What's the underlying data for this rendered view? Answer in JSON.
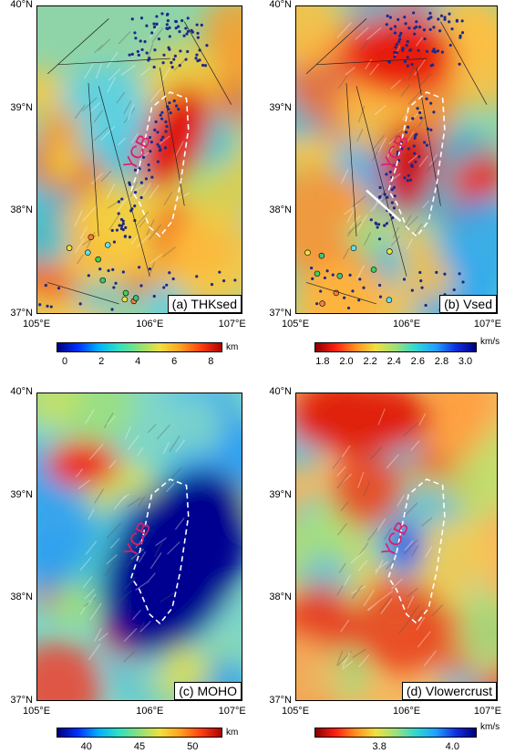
{
  "panels": [
    {
      "id": "a",
      "title": "(a) THKsed",
      "unit": "km",
      "cbar_type": "jet",
      "ticks": [
        "0",
        "2",
        "4",
        "6",
        "8"
      ],
      "overlays": "points",
      "boundary_label": "YCB"
    },
    {
      "id": "b",
      "title": "(b) Vsed",
      "unit": "km/s",
      "cbar_type": "rev",
      "ticks": [
        "1.8",
        "2.0",
        "2.2",
        "2.4",
        "2.6",
        "2.8",
        "3.0"
      ],
      "overlays": "points",
      "boundary_label": "YCB"
    },
    {
      "id": "c",
      "title": "(c) MOHO",
      "unit": "km",
      "cbar_type": "jet",
      "ticks": [
        "40",
        "45",
        "50"
      ],
      "overlays": "none",
      "boundary_label": "YCB"
    },
    {
      "id": "d",
      "title": "(d) Vlowercrust",
      "unit": "km/s",
      "cbar_type": "rev",
      "ticks": [
        "3.8",
        "4.0"
      ],
      "overlays": "none",
      "boundary_label": "YCB"
    }
  ],
  "lat_labels": [
    "40°N",
    "39°N",
    "38°N",
    "37°N"
  ],
  "lon_labels": [
    "105°E",
    "106°E",
    "107°E"
  ],
  "colors": {
    "boundary": "#ffffff",
    "label": "#e01b6b",
    "station": "#1a2a8a",
    "fault": "#222222"
  }
}
